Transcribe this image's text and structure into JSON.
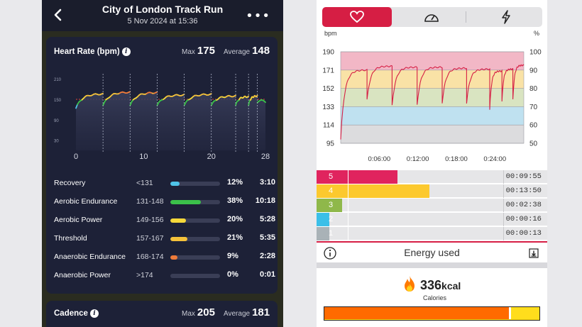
{
  "left": {
    "header": {
      "title": "City of London Track Run",
      "subtitle": "5 Nov 2024 at 15:36",
      "back_icon": "chevron-left-icon",
      "more_icon": "more-dots-icon"
    },
    "heart_rate": {
      "title": "Heart Rate (bpm)",
      "max_label": "Max",
      "max_value": "175",
      "avg_label": "Average",
      "avg_value": "148",
      "y_ticks": [
        "210",
        "150",
        "90",
        "30"
      ],
      "x_ticks": [
        "0",
        "10",
        "20",
        "28"
      ],
      "zones": [
        {
          "name": "Recovery",
          "range": "<131",
          "pct": "12%",
          "time": "3:10",
          "fraction": 0.12,
          "color": "#4fc3e8"
        },
        {
          "name": "Aerobic Endurance",
          "range": "131-148",
          "pct": "38%",
          "time": "10:18",
          "fraction": 0.38,
          "color": "#3bc14a"
        },
        {
          "name": "Aerobic Power",
          "range": "149-156",
          "pct": "20%",
          "time": "5:28",
          "fraction": 0.2,
          "color": "#f5d83a"
        },
        {
          "name": "Threshold",
          "range": "157-167",
          "pct": "21%",
          "time": "5:35",
          "fraction": 0.21,
          "color": "#f5c23a"
        },
        {
          "name": "Anaerobic Endurance",
          "range": "168-174",
          "pct": "9%",
          "time": "2:28",
          "fraction": 0.09,
          "color": "#ef7b3a"
        },
        {
          "name": "Anaerobic Power",
          "range": ">174",
          "pct": "0%",
          "time": "0:01",
          "fraction": 0.0,
          "color": "#e53935"
        }
      ]
    },
    "cadence": {
      "title": "Cadence",
      "max_label": "Max",
      "max_value": "205",
      "avg_label": "Average",
      "avg_value": "181"
    }
  },
  "right": {
    "tabs": [
      {
        "icon": "heart-icon",
        "active": true
      },
      {
        "icon": "speedometer-icon",
        "active": false
      },
      {
        "icon": "lightning-icon",
        "active": false
      }
    ],
    "chart": {
      "left_unit": "bpm",
      "right_unit": "%",
      "left_ticks": [
        "190",
        "171",
        "152",
        "133",
        "114",
        "95"
      ],
      "right_ticks": [
        "100",
        "90",
        "80",
        "70",
        "60",
        "50"
      ],
      "x_ticks": [
        "0:06:00",
        "0:12:00",
        "0:18:00",
        "0:24:00"
      ]
    },
    "zone_bars": [
      {
        "zone": "5",
        "time": "00:09:55",
        "color": "#e0245e",
        "fraction": 0.38
      },
      {
        "zone": "4",
        "time": "00:13:50",
        "color": "#fcc92e",
        "fraction": 0.53
      },
      {
        "zone": "3",
        "time": "00:02:38",
        "color": "#8fb84a",
        "fraction": 0.12
      },
      {
        "zone": "2",
        "time": "00:00:16",
        "color": "#3bbfe8",
        "fraction": 0.06
      },
      {
        "zone": "1",
        "time": "00:00:13",
        "color": "#a9b2b7",
        "fraction": 0.06
      }
    ],
    "energy": {
      "label": "Energy used",
      "info_icon": "info-icon",
      "export_icon": "export-icon"
    },
    "calories": {
      "value": "336",
      "unit": "kcal",
      "label": "Calories",
      "icon": "flame-icon",
      "fraction": 0.86
    }
  }
}
